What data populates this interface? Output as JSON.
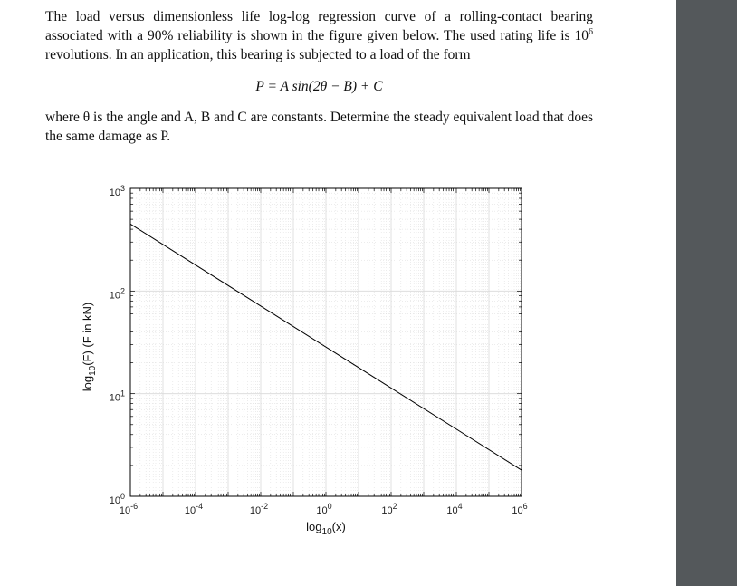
{
  "problem": {
    "para1_part1": "The load versus dimensionless life log-log regression curve of a rolling-contact bearing associated with a 90% reliability is shown in the figure given below. The used rating life is 10",
    "para1_sup": "6",
    "para1_part2": " revolutions. In an application, this bearing is subjected to a load of the form",
    "equation": "P = A sin(2θ − B) + C",
    "para2": "where θ is the angle and A, B and C are constants. Determine the steady equivalent load that does the same damage as P."
  },
  "colors": {
    "sidebar": "#54585b",
    "line": "#000000",
    "grid": "#d9d9d9"
  },
  "chart_data": {
    "type": "line",
    "xscale": "log",
    "yscale": "log",
    "xlim": [
      1e-06,
      1000000.0
    ],
    "ylim": [
      1,
      1000
    ],
    "xlabel": "log10(x)",
    "ylabel": "log10(F) (F in kN)",
    "x_ticks": [
      "10^-6",
      "10^-4",
      "10^-2",
      "10^0",
      "10^2",
      "10^4",
      "10^6"
    ],
    "y_ticks": [
      "10^0",
      "10^1",
      "10^2",
      "10^3"
    ],
    "grid": true,
    "x": [
      1e-06,
      1000000.0
    ],
    "y": [
      450,
      1.8
    ]
  }
}
